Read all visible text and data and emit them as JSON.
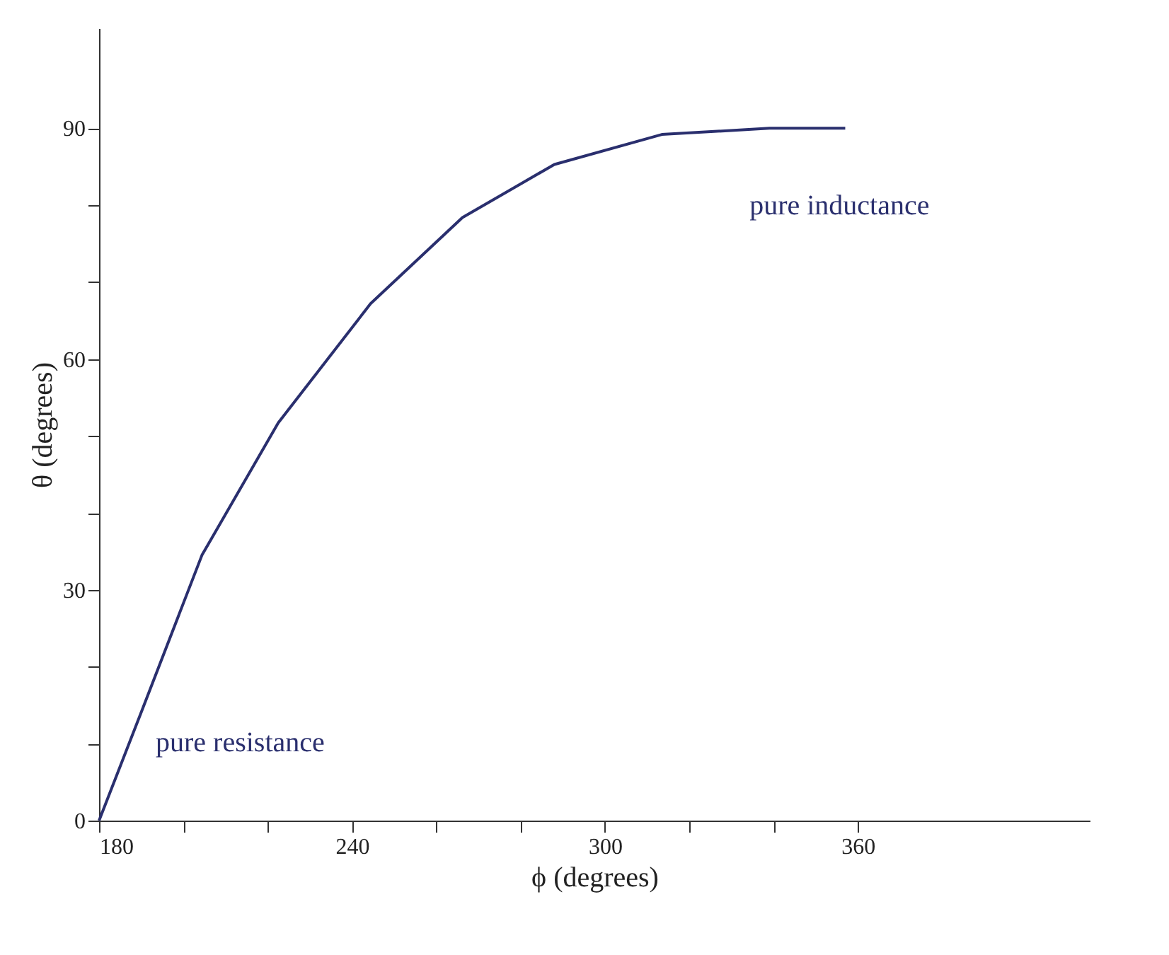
{
  "chart_data": {
    "type": "line",
    "xlabel": "ϕ (degrees)",
    "ylabel": "θ (degrees)",
    "x": [
      180,
      189.8,
      204.4,
      222.5,
      244.4,
      266.2,
      288,
      313.5,
      339,
      357
    ],
    "series": [
      {
        "color": "#2a2f6e",
        "values": [
          0,
          13.8,
          34.5,
          51.7,
          67.2,
          78.4,
          85.3,
          89.2,
          90,
          90
        ]
      }
    ],
    "xlim": [
      180,
      415
    ],
    "ylim": [
      0,
      103
    ],
    "xticks": [
      180,
      {
        "value": 200,
        "label": null
      },
      {
        "value": 220,
        "label": null
      },
      240,
      {
        "value": 260,
        "label": null
      },
      {
        "value": 280,
        "label": null
      },
      300,
      {
        "value": 320,
        "label": null
      },
      {
        "value": 340,
        "label": null
      },
      360
    ],
    "yticks": [
      0,
      {
        "value": 10,
        "label": null
      },
      {
        "value": 20,
        "label": null
      },
      30,
      {
        "value": 40,
        "label": null
      },
      {
        "value": 50,
        "label": null
      },
      60,
      {
        "value": 70,
        "label": null
      },
      {
        "value": 80,
        "label": null
      },
      90
    ],
    "annotations": [
      {
        "text": "pure inductance",
        "x": 341,
        "y": 90
      },
      {
        "text": "pure resistance",
        "x": 180,
        "y": 0
      }
    ],
    "grid": false,
    "marker": "none",
    "line_style": "solid"
  }
}
